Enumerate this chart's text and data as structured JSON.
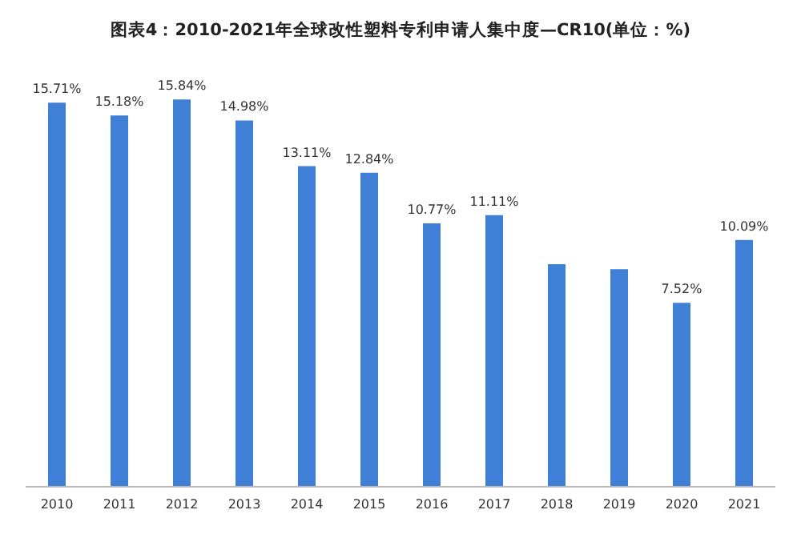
{
  "chart_data": {
    "type": "bar",
    "title": "图表4：2010-2021年全球改性塑料专利申请人集中度—CR10(单位：%)",
    "categories": [
      "2010",
      "2011",
      "2012",
      "2013",
      "2014",
      "2015",
      "2016",
      "2017",
      "2018",
      "2019",
      "2020",
      "2021"
    ],
    "values": [
      15.71,
      15.18,
      15.84,
      14.98,
      13.11,
      12.84,
      10.77,
      11.11,
      9.1,
      8.9,
      7.52,
      10.09
    ],
    "value_labels": [
      "15.71%",
      "15.18%",
      "15.84%",
      "14.98%",
      "13.11%",
      "12.84%",
      "10.77%",
      "11.11%",
      null,
      null,
      "7.52%",
      "10.09%"
    ],
    "color": "#3f7fd6",
    "grid": false
  }
}
